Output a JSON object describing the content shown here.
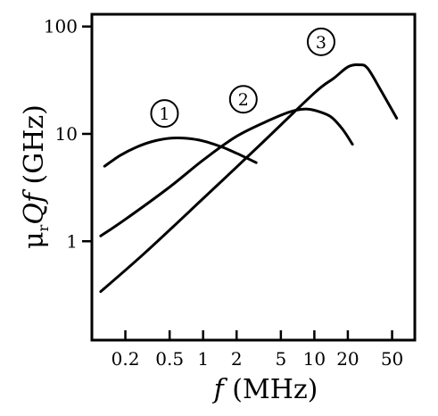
{
  "chart_data": {
    "type": "line",
    "xlabel": {
      "symbol": "f",
      "unit": " (MHz)"
    },
    "ylabel": {
      "symbol_mu": "μ",
      "symbol_sub": "r",
      "symbol_q": "Q",
      "symbol_f": "f",
      "unit": " (GHz)"
    },
    "x_scale": "log",
    "y_scale": "log",
    "xlim": [
      0.1,
      80
    ],
    "ylim": [
      0.12,
      130
    ],
    "x_ticks": [
      {
        "value": 0.2,
        "label": "0.2"
      },
      {
        "value": 0.5,
        "label": "0.5"
      },
      {
        "value": 1,
        "label": "1"
      },
      {
        "value": 2,
        "label": "2"
      },
      {
        "value": 5,
        "label": "5"
      },
      {
        "value": 10,
        "label": "10"
      },
      {
        "value": 20,
        "label": "20"
      },
      {
        "value": 50,
        "label": "50"
      }
    ],
    "y_ticks": [
      {
        "value": 1,
        "label": "1"
      },
      {
        "value": 10,
        "label": "10"
      },
      {
        "value": 100,
        "label": "100"
      }
    ],
    "grid": false,
    "series": [
      {
        "name": "1",
        "color": "#000000",
        "x": [
          0.13,
          0.18,
          0.25,
          0.35,
          0.5,
          0.7,
          1.0,
          1.5,
          2.0,
          3.0
        ],
        "y": [
          5.0,
          6.3,
          7.5,
          8.5,
          9.1,
          9.1,
          8.6,
          7.5,
          6.6,
          5.4
        ]
      },
      {
        "name": "2",
        "color": "#000000",
        "x": [
          0.12,
          0.2,
          0.5,
          1.0,
          2.0,
          4.0,
          6.0,
          8.0,
          10.0,
          14.0,
          18.0,
          22.0
        ],
        "y": [
          1.12,
          1.6,
          3.2,
          5.7,
          9.5,
          13.5,
          16.0,
          17.0,
          16.6,
          14.5,
          11.0,
          8.0
        ]
      },
      {
        "name": "3",
        "color": "#000000",
        "x": [
          0.12,
          0.3,
          1.0,
          3.0,
          10.0,
          15.0,
          20.0,
          25.0,
          30.0,
          40.0,
          55.0
        ],
        "y": [
          0.34,
          0.78,
          2.5,
          7.3,
          24.0,
          33.0,
          42.0,
          44.0,
          41.0,
          25.0,
          14.0
        ]
      }
    ],
    "annotations": [
      {
        "text": "1",
        "series": "1",
        "x": 0.45,
        "y": 15.5
      },
      {
        "text": "2",
        "series": "2",
        "x": 2.3,
        "y": 21.0
      },
      {
        "text": "3",
        "series": "3",
        "x": 11.5,
        "y": 72.0
      }
    ]
  }
}
